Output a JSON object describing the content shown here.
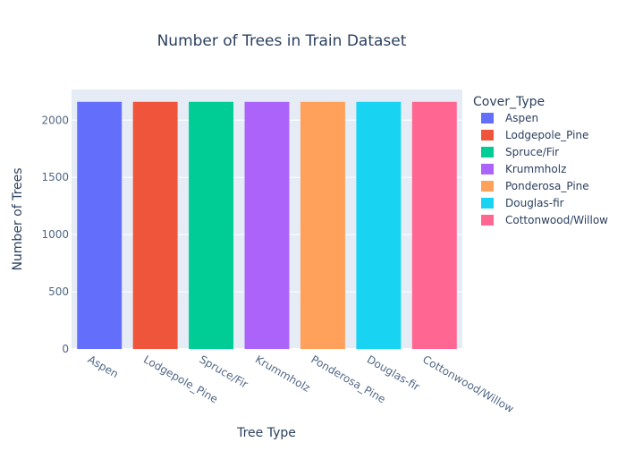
{
  "chart_data": {
    "type": "bar",
    "title": "Number of Trees in Train Dataset",
    "xlabel": "Tree Type",
    "ylabel": "Number of Trees",
    "legend_title": "Cover_Type",
    "legend_position": "right",
    "grid": true,
    "ylim": [
      0,
      2268
    ],
    "yticks": [
      0,
      500,
      1000,
      1500,
      2000
    ],
    "categories": [
      "Aspen",
      "Lodgepole_Pine",
      "Spruce/Fir",
      "Krummholz",
      "Ponderosa_Pine",
      "Douglas-fir",
      "Cottonwood/Willow"
    ],
    "series": [
      {
        "name": "Aspen",
        "category": "Aspen",
        "value": 2160,
        "color": "#636efa"
      },
      {
        "name": "Lodgepole_Pine",
        "category": "Lodgepole_Pine",
        "value": 2160,
        "color": "#EF553B"
      },
      {
        "name": "Spruce/Fir",
        "category": "Spruce/Fir",
        "value": 2160,
        "color": "#00cc96"
      },
      {
        "name": "Krummholz",
        "category": "Krummholz",
        "value": 2160,
        "color": "#ab63fa"
      },
      {
        "name": "Ponderosa_Pine",
        "category": "Ponderosa_Pine",
        "value": 2160,
        "color": "#FFA15A"
      },
      {
        "name": "Douglas-fir",
        "category": "Douglas-fir",
        "value": 2160,
        "color": "#19d3f3"
      },
      {
        "name": "Cottonwood/Willow",
        "category": "Cottonwood/Willow",
        "value": 2160,
        "color": "#FF6692"
      }
    ],
    "colors": {
      "plot_background": "#E5ECF6",
      "gridline": "#ffffff",
      "text": "#2a3f5f",
      "tick_text": "#506784"
    }
  }
}
